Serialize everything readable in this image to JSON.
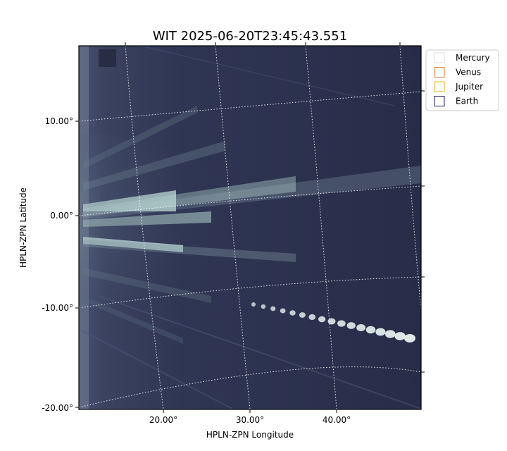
{
  "chart_data": {
    "type": "image",
    "title": "WIT 2025-06-20T23:45:43.551",
    "xlabel": "HPLN-ZPN Longitude",
    "ylabel": "HPLN-ZPN Latitude",
    "x_ticks": [
      "20.00°",
      "30.00°",
      "40.00°"
    ],
    "y_ticks": [
      "10.00°",
      "0.00°",
      "-10.00°",
      "-20.00°"
    ],
    "legend": {
      "placement": "outside-top-right",
      "entries": [
        {
          "name": "Mercury",
          "color": "#dddddd"
        },
        {
          "name": "Venus",
          "color": "#e07b39"
        },
        {
          "name": "Jupiter",
          "color": "#e6b422"
        },
        {
          "name": "Earth",
          "color": "#1a1a6e"
        }
      ]
    },
    "colormap": [
      "#1a1f33",
      "#4a5270",
      "#c8e6e0"
    ],
    "grid": "dotted"
  }
}
